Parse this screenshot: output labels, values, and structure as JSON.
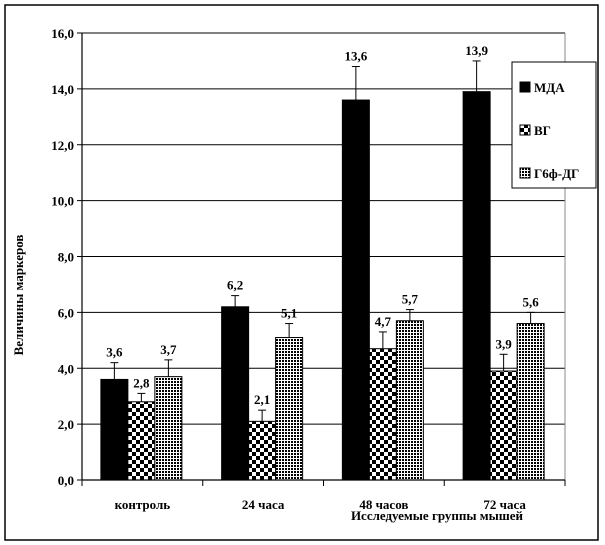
{
  "chart_data": {
    "type": "bar",
    "title": "",
    "xlabel": "Исследуемые группы мышей",
    "ylabel": "Величины маркеров",
    "ylim": [
      0,
      16
    ],
    "yticks": [
      "0,0",
      "2,0",
      "4,0",
      "6,0",
      "8,0",
      "10,0",
      "12,0",
      "14,0",
      "16,0"
    ],
    "ytick_values": [
      0,
      2,
      4,
      6,
      8,
      10,
      12,
      14,
      16
    ],
    "categories": [
      "контроль",
      "24 часа",
      "48 часов",
      "72 часа"
    ],
    "grid": true,
    "legend_position": "right",
    "series": [
      {
        "name": "МДА",
        "values": [
          3.6,
          6.2,
          13.6,
          13.9
        ],
        "labels": [
          "3,6",
          "6,2",
          "13,6",
          "13,9"
        ],
        "errors": [
          0.6,
          0.4,
          1.2,
          1.1
        ],
        "pattern": "solid"
      },
      {
        "name": "ВГ",
        "values": [
          2.8,
          2.1,
          4.7,
          3.9
        ],
        "labels": [
          "2,8",
          "2,1",
          "4,7",
          "3,9"
        ],
        "errors": [
          0.3,
          0.4,
          0.6,
          0.6
        ],
        "pattern": "checker"
      },
      {
        "name": "Г6ф-ДГ",
        "values": [
          3.7,
          5.1,
          5.7,
          5.6
        ],
        "labels": [
          "3,7",
          "5,1",
          "5,7",
          "5,6"
        ],
        "errors": [
          0.6,
          0.5,
          0.4,
          0.4
        ],
        "pattern": "dots"
      }
    ]
  }
}
